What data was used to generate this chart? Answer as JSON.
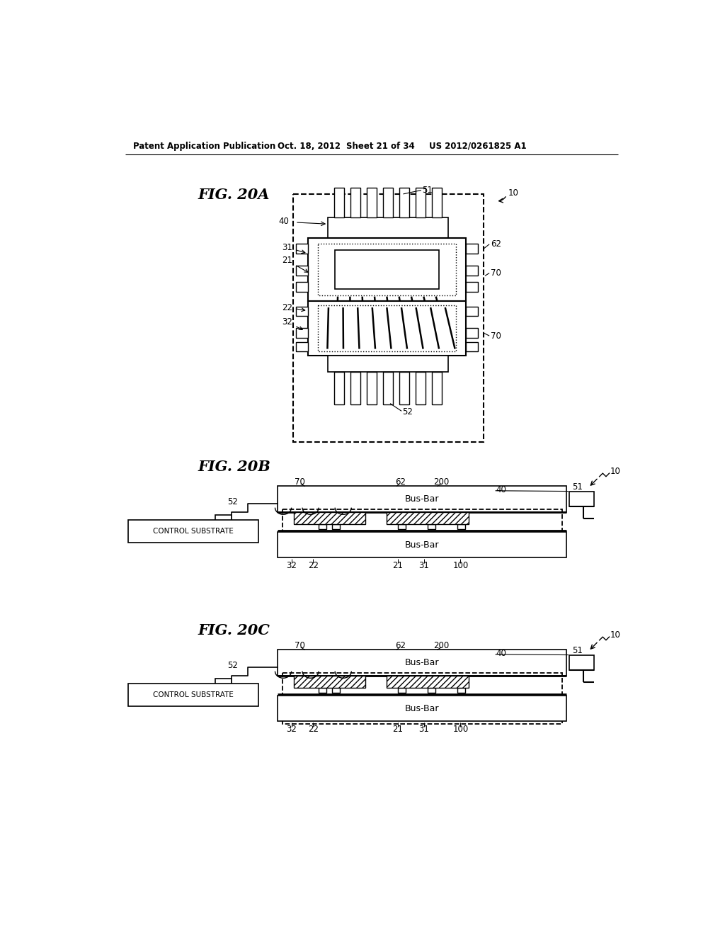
{
  "bg": "#ffffff",
  "header1": "Patent Application Publication",
  "header2": "Oct. 18, 2012",
  "header3": "Sheet 21 of 34",
  "header4": "US 2012/0261825 A1",
  "lbl_20a": "FIG. 20A",
  "lbl_20b": "FIG. 20B",
  "lbl_20c": "FIG. 20C"
}
